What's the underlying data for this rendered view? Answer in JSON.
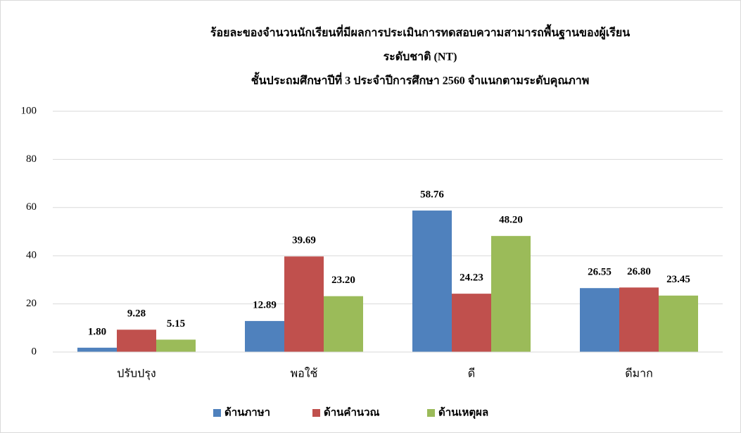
{
  "chart_data": {
    "type": "bar",
    "title": [
      "ร้อยละของจำนวนนักเรียนที่มีผลการประเมินการทดสอบความสามารถพื้นฐานของผู้เรียน",
      "ระดับชาติ (NT)",
      "ชั้นประถมศึกษาปีที่ 3 ประจำปีการศึกษา 2560 จำแนกตามระดับคุณภาพ"
    ],
    "categories": [
      "ปรับปรุง",
      "พอใช้",
      "ดี",
      "ดีมาก"
    ],
    "series": [
      {
        "name": "ด้านภาษา",
        "color": "#4f81bd",
        "values": [
          1.8,
          12.89,
          58.76,
          26.55
        ],
        "value_labels": [
          "1.80",
          "12.89",
          "58.76",
          "26.55"
        ]
      },
      {
        "name": "ด้านคำนวณ",
        "color": "#c0504d",
        "values": [
          9.28,
          39.69,
          24.23,
          26.8
        ],
        "value_labels": [
          "9.28",
          "39.69",
          "24.23",
          "26.80"
        ]
      },
      {
        "name": "ด้านเหตุผล",
        "color": "#9bbb59",
        "values": [
          5.15,
          23.2,
          48.2,
          23.45
        ],
        "value_labels": [
          "5.15",
          "23.20",
          "48.20",
          "23.45"
        ]
      }
    ],
    "ylim": [
      0,
      100
    ],
    "yticks": [
      0,
      20,
      40,
      60,
      80,
      100
    ],
    "grid": true,
    "legend": "bottom"
  }
}
